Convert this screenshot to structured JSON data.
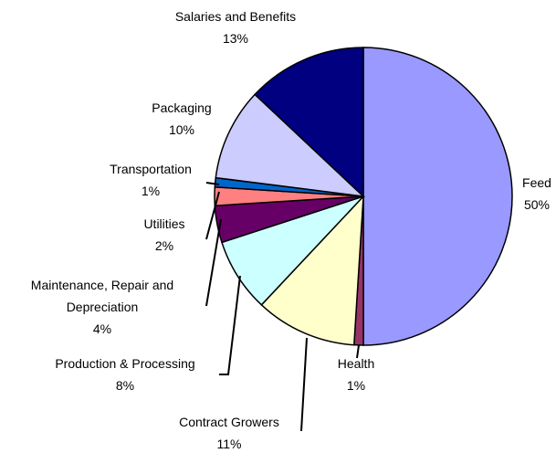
{
  "chart_data": {
    "type": "pie",
    "categories": [
      "Feed",
      "Health",
      "Contract Growers",
      "Production & Processing",
      "Maintenance, Repair and Depreciation",
      "Utilities",
      "Transportation",
      "Packaging",
      "Salaries and Benefits"
    ],
    "values": [
      50,
      1,
      11,
      8,
      4,
      2,
      1,
      10,
      13
    ],
    "value_labels": [
      "50%",
      "1%",
      "11%",
      "8%",
      "4%",
      "2%",
      "1%",
      "10%",
      "13%"
    ],
    "colors": [
      "#9999ff",
      "#993366",
      "#ffffcc",
      "#ccffff",
      "#660066",
      "#ff8080",
      "#0066cc",
      "#ccccff",
      "#000080"
    ]
  }
}
